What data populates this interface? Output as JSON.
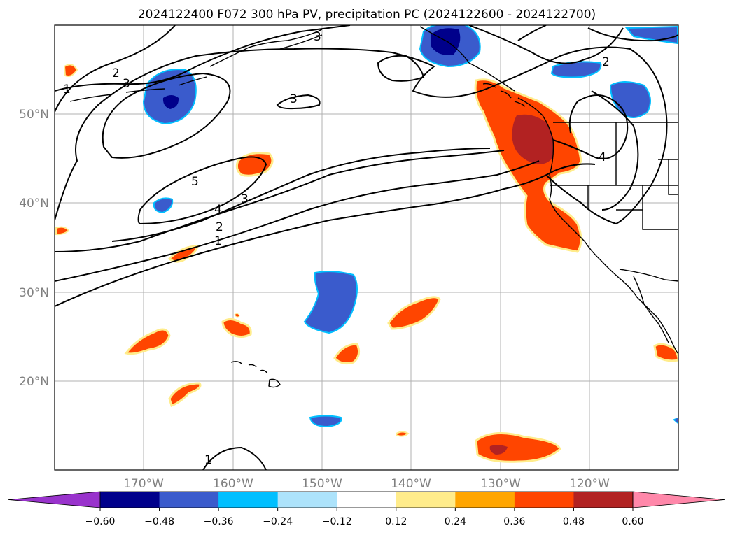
{
  "title": "2024122400 F072 300 hPa PV, precipitation PC (2024122600 - 2024122700)",
  "map": {
    "lon_range": [
      -180,
      -110
    ],
    "lat_range": [
      10,
      60
    ],
    "gridlines": true,
    "lon_ticks": [
      "170°W",
      "160°W",
      "150°W",
      "140°W",
      "130°W",
      "120°W"
    ],
    "lat_ticks": [
      "50°N",
      "40°N",
      "30°N",
      "20°N"
    ],
    "land_fill": "none",
    "coastline_color": "#000000"
  },
  "colorbar": {
    "orientation": "horizontal",
    "extend": "both",
    "tick_labels": [
      "−0.60",
      "−0.48",
      "−0.36",
      "−0.24",
      "−0.12",
      "0.12",
      "0.24",
      "0.36",
      "0.48",
      "0.60"
    ],
    "colors": [
      "#9933cc",
      "#00008b",
      "#3a5bcc",
      "#00bfff",
      "#ade3fb",
      "#ffffff",
      "#ffec8b",
      "#ffa500",
      "#ff4500",
      "#b22222",
      "#ff88aa"
    ]
  },
  "pv_contour_labels": [
    "1",
    "2",
    "3",
    "3",
    "3",
    "5",
    "4",
    "3",
    "2",
    "1",
    "2",
    "4",
    "1"
  ],
  "legend": {
    "positive_precip": "warm colors",
    "negative_precip": "cool colors"
  }
}
